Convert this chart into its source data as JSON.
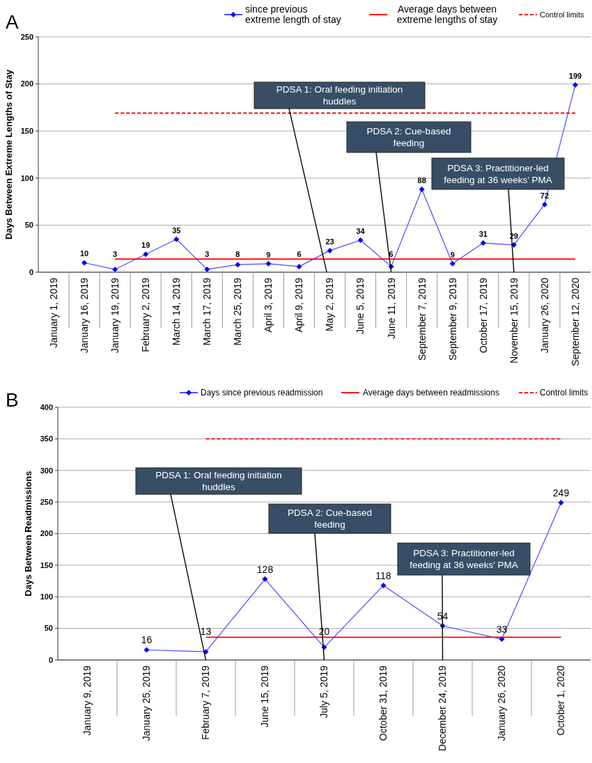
{
  "chart_data": [
    {
      "type": "line",
      "title": "A",
      "ylabel": "Days Between Extreme Lengths of Stay",
      "categories": [
        "January 1, 2019",
        "January 16, 2019",
        "January 19, 2019",
        "February 2, 2019",
        "March 14, 2019",
        "March 17, 2019",
        "March 25, 2019",
        "April 3, 2019",
        "April 9, 2019",
        "May 2, 2019",
        "June 5, 2019",
        "June 11, 2019",
        "September 7, 2019",
        "September 9, 2019",
        "October 17, 2019",
        "November 15, 2019",
        "January 26, 2020",
        "September 12, 2020"
      ],
      "series": [
        {
          "name": "since previous extreme length of stay",
          "color": "#4a4aff",
          "marker": "diamond",
          "values": [
            null,
            10,
            3,
            19,
            35,
            3,
            8,
            9,
            6,
            23,
            34,
            6,
            88,
            9,
            31,
            29,
            72,
            199
          ],
          "value_labels": [
            null,
            "10",
            "3",
            "19",
            "35",
            "3",
            "8",
            "9",
            "6",
            "23",
            "34",
            "6",
            "88",
            "9",
            "31",
            "29",
            "72",
            "199"
          ]
        },
        {
          "name": "Average days between extreme lengths of stay",
          "color": "#ff0000",
          "marker": "none",
          "line_style": "solid",
          "values": [
            null,
            null,
            14,
            14,
            14,
            14,
            14,
            14,
            14,
            14,
            14,
            14,
            14,
            14,
            14,
            14,
            14,
            14
          ]
        },
        {
          "name": "Control limits",
          "color": "#ff0000",
          "marker": "none",
          "line_style": "dashed",
          "values": [
            null,
            null,
            169,
            169,
            169,
            169,
            169,
            169,
            169,
            169,
            169,
            169,
            169,
            169,
            169,
            169,
            169,
            169
          ]
        }
      ],
      "ylim": [
        0,
        250
      ],
      "yticks": [
        0,
        50,
        100,
        150,
        200,
        250
      ],
      "grid": "y",
      "legend": "top right",
      "annotations": [
        "PDSA 1: Oral feeding initiation huddles",
        "PDSA 2: Cue-based feeding",
        "PDSA 3: Practitioner-led feeding at 36 weeks' PMA"
      ]
    },
    {
      "type": "line",
      "title": "B",
      "ylabel": "Days Between Readmissions",
      "categories": [
        "January 9, 2019",
        "January 25, 2019",
        "February 7, 2019",
        "June 15, 2019",
        "July 5, 2019",
        "October 31, 2019",
        "December 24, 2019",
        "January 26, 2020",
        "October 1, 2020"
      ],
      "series": [
        {
          "name": "Days since previous readmission",
          "color": "#4a4aff",
          "marker": "diamond",
          "values": [
            null,
            16,
            13,
            128,
            20,
            118,
            54,
            33,
            249
          ],
          "value_labels": [
            null,
            "16",
            "13",
            "128",
            "20",
            "118",
            "54",
            "33",
            "249"
          ]
        },
        {
          "name": "Average days between readmissions",
          "color": "#ff0000",
          "marker": "none",
          "line_style": "solid",
          "values": [
            null,
            null,
            36,
            36,
            36,
            36,
            36,
            36,
            36
          ]
        },
        {
          "name": "Control limits",
          "color": "#ff0000",
          "marker": "none",
          "line_style": "dashed",
          "values": [
            null,
            null,
            350,
            350,
            350,
            350,
            350,
            350,
            350
          ]
        }
      ],
      "ylim": [
        0,
        400
      ],
      "yticks": [
        0,
        50,
        100,
        150,
        200,
        250,
        300,
        350,
        400
      ],
      "grid": "y",
      "legend": "top right",
      "annotations": [
        "PDSA 1: Oral feeding initiation huddles",
        "PDSA 2: Cue-based feeding",
        "PDSA 3: Practitioner-led feeding at 36 weeks' PMA"
      ]
    }
  ]
}
